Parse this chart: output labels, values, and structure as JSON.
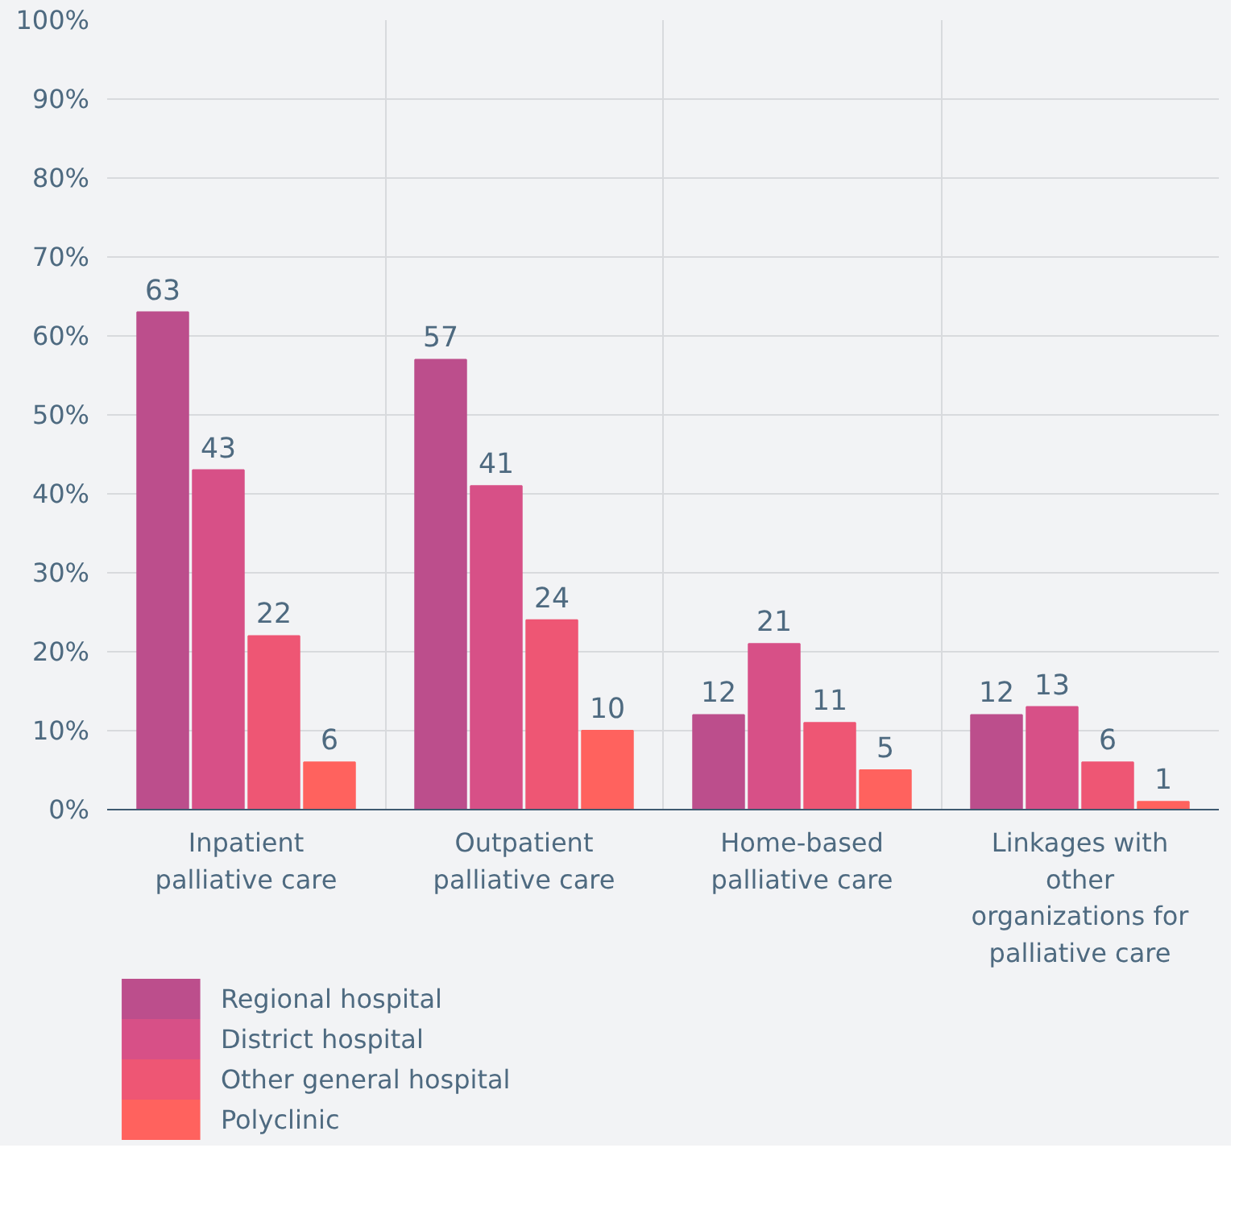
{
  "chart_data": {
    "type": "bar",
    "categories": [
      "Inpatient palliative care",
      "Outpatient palliative care",
      "Home-based palliative care",
      "Linkages with other organizations for palliative care"
    ],
    "series": [
      {
        "name": "Regional hospital",
        "color": "#bc4e8c",
        "values": [
          63,
          57,
          12,
          12
        ]
      },
      {
        "name": "District hospital",
        "color": "#d75087",
        "values": [
          43,
          41,
          21,
          13
        ]
      },
      {
        "name": "Other general hospital",
        "color": "#ee5674",
        "values": [
          22,
          24,
          11,
          6
        ]
      },
      {
        "name": "Polyclinic",
        "color": "#ff625e",
        "values": [
          6,
          10,
          5,
          1
        ]
      }
    ],
    "ylim": [
      0,
      100
    ],
    "yticks": [
      {
        "value": 0,
        "label": "0%"
      },
      {
        "value": 10,
        "label": "10%"
      },
      {
        "value": 20,
        "label": "20%"
      },
      {
        "value": 30,
        "label": "30%"
      },
      {
        "value": 40,
        "label": "40%"
      },
      {
        "value": 50,
        "label": "50%"
      },
      {
        "value": 60,
        "label": "60%"
      },
      {
        "value": 70,
        "label": "70%"
      },
      {
        "value": 80,
        "label": "80%"
      },
      {
        "value": 90,
        "label": "90%"
      },
      {
        "value": 100,
        "label": "100%"
      }
    ],
    "data_labels": true,
    "grid": true,
    "legend": "bottom"
  }
}
